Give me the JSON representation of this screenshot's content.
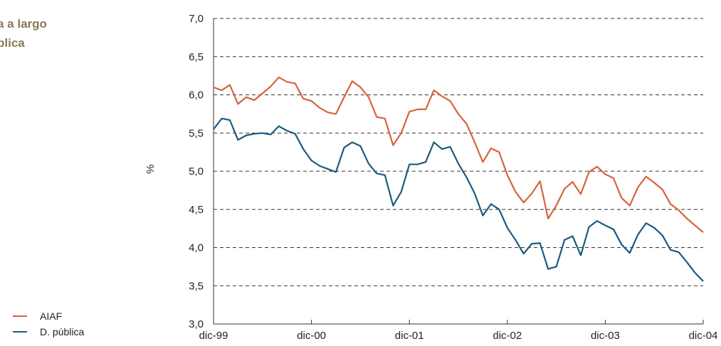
{
  "side_title": {
    "line1": "a a largo",
    "line2": "blica"
  },
  "chart_data": {
    "type": "line",
    "ylabel": "%",
    "ylim": [
      3.0,
      7.0
    ],
    "yticks": [
      "3,0",
      "3,5",
      "4,0",
      "4,5",
      "5,0",
      "5,5",
      "6,0",
      "6,5",
      "7,0"
    ],
    "xticks": [
      "dic-99",
      "dic-00",
      "dic-01",
      "dic-02",
      "dic-03",
      "dic-04"
    ],
    "x_range_months": [
      0,
      60
    ],
    "grid": "horizontal dashed",
    "legend_position": "bottom-left",
    "series": [
      {
        "name": "AIAF",
        "color": "#d9623b",
        "values": [
          6.1,
          6.06,
          6.13,
          5.88,
          5.97,
          5.93,
          6.02,
          6.11,
          6.23,
          6.17,
          6.15,
          5.95,
          5.92,
          5.83,
          5.77,
          5.75,
          5.97,
          6.18,
          6.1,
          5.97,
          5.71,
          5.69,
          5.34,
          5.5,
          5.78,
          5.81,
          5.81,
          6.06,
          5.98,
          5.92,
          5.75,
          5.62,
          5.38,
          5.12,
          5.3,
          5.25,
          4.95,
          4.73,
          4.59,
          4.71,
          4.87,
          4.38,
          4.55,
          4.77,
          4.86,
          4.7,
          4.99,
          5.06,
          4.96,
          4.91,
          4.65,
          4.55,
          4.79,
          4.93,
          4.85,
          4.76,
          4.57,
          4.49,
          4.38,
          4.29,
          4.2
        ]
      },
      {
        "name": "D. pública",
        "color": "#1c5a7e",
        "values": [
          5.55,
          5.69,
          5.67,
          5.41,
          5.47,
          5.49,
          5.5,
          5.48,
          5.59,
          5.53,
          5.49,
          5.29,
          5.14,
          5.07,
          5.03,
          4.99,
          5.31,
          5.38,
          5.33,
          5.1,
          4.97,
          4.95,
          4.55,
          4.73,
          5.09,
          5.09,
          5.12,
          5.38,
          5.29,
          5.32,
          5.1,
          4.92,
          4.71,
          4.42,
          4.57,
          4.5,
          4.26,
          4.1,
          3.92,
          4.05,
          4.06,
          3.72,
          3.75,
          4.1,
          4.15,
          3.9,
          4.27,
          4.35,
          4.29,
          4.24,
          4.04,
          3.93,
          4.17,
          4.32,
          4.26,
          4.16,
          3.97,
          3.94,
          3.81,
          3.67,
          3.56
        ]
      }
    ]
  }
}
